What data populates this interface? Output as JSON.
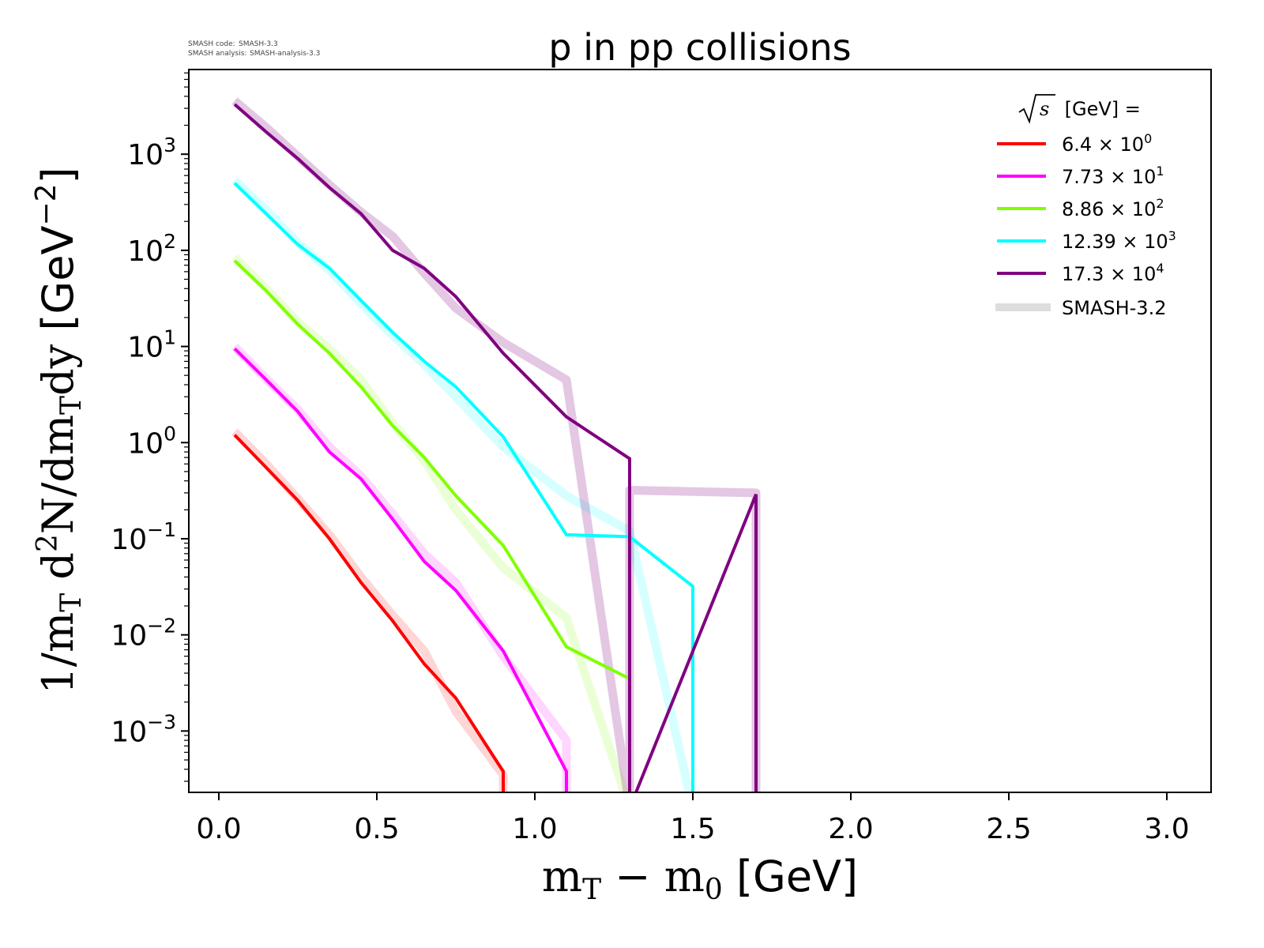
{
  "meta": {
    "code_label": "SMASH code:",
    "code_value": "SMASH-3.3",
    "analysis_label": "SMASH analysis:",
    "analysis_value": "SMASH-analysis-3.3"
  },
  "chart_data": {
    "type": "line",
    "title": "p in pp collisions",
    "xlabel": "m_T − m_0 [GeV]",
    "ylabel": "1/m_T d^2N/dm_Tdy [GeV^-2]",
    "xlabel_parts": {
      "m1": "m",
      "sub1": "T",
      "minus": " − ",
      "m2": "m",
      "sub2": "0",
      "unit": " [GeV]"
    },
    "ylabel_parts": {
      "p1": "1/m",
      "s1": "T",
      "p2": " d",
      "s2": "2",
      "p3": "N/dm",
      "s3": "T",
      "p4": "dy",
      "unit": " [GeV",
      "exp": "−2",
      "close": "]"
    },
    "xscale": "linear",
    "yscale": "log",
    "xlim": [
      -0.095,
      3.14
    ],
    "ylim": [
      0.00023,
      7600
    ],
    "x_ticks": [
      {
        "value": 0.0,
        "label": "0.0"
      },
      {
        "value": 0.5,
        "label": "0.5"
      },
      {
        "value": 1.0,
        "label": "1.0"
      },
      {
        "value": 1.5,
        "label": "1.5"
      },
      {
        "value": 2.0,
        "label": "2.0"
      },
      {
        "value": 2.5,
        "label": "2.5"
      },
      {
        "value": 3.0,
        "label": "3.0"
      }
    ],
    "y_ticks": [
      {
        "exp": 3,
        "base": "10",
        "sup": "3"
      },
      {
        "exp": 2,
        "base": "10",
        "sup": "2"
      },
      {
        "exp": 1,
        "base": "10",
        "sup": "1"
      },
      {
        "exp": 0,
        "base": "10",
        "sup": "0"
      },
      {
        "exp": -1,
        "base": "10",
        "sup": "−1"
      },
      {
        "exp": -2,
        "base": "10",
        "sup": "−2"
      },
      {
        "exp": -3,
        "base": "10",
        "sup": "−3"
      }
    ],
    "grid": false,
    "legend": {
      "placement": "top-right",
      "title_sqrt": "s",
      "title_rest": " [GeV] =",
      "entries": [
        {
          "mantissa": "6.4",
          "times": " × 10",
          "exp": "0"
        },
        {
          "mantissa": "7.73",
          "times": " × 10",
          "exp": "1"
        },
        {
          "mantissa": "8.86",
          "times": " × 10",
          "exp": "2"
        },
        {
          "mantissa": "12.39",
          "times": " × 10",
          "exp": "3"
        },
        {
          "mantissa": "17.3",
          "times": " × 10",
          "exp": "4"
        }
      ],
      "reference_label": "SMASH-3.2"
    },
    "reference_color": "#dddddd",
    "series": [
      {
        "name": "6.4 × 10^0",
        "color": "#ff0000",
        "x": [
          0.05,
          0.15,
          0.25,
          0.35,
          0.45,
          0.55,
          0.65,
          0.75,
          0.9,
          0.9
        ],
        "y": [
          1.2,
          0.55,
          0.25,
          0.1,
          0.035,
          0.014,
          0.005,
          0.0022,
          0.00038,
          0
        ],
        "reference_y": [
          1.3,
          0.6,
          0.26,
          0.11,
          0.04,
          0.016,
          0.0068,
          0.0016,
          0.00035,
          0
        ]
      },
      {
        "name": "7.73 × 10^1",
        "color": "#ff00ff",
        "x": [
          0.05,
          0.15,
          0.25,
          0.35,
          0.45,
          0.55,
          0.65,
          0.75,
          0.9,
          1.1,
          1.1
        ],
        "y": [
          9.5,
          4.5,
          2.1,
          0.8,
          0.42,
          0.16,
          0.058,
          0.029,
          0.0068,
          0.00038,
          0
        ],
        "reference_y": [
          10,
          4.6,
          2.2,
          0.9,
          0.45,
          0.18,
          0.07,
          0.035,
          0.006,
          0.0008,
          0
        ]
      },
      {
        "name": "8.86 × 10^2",
        "color": "#80ff00",
        "x": [
          0.05,
          0.15,
          0.25,
          0.35,
          0.45,
          0.55,
          0.65,
          0.75,
          0.9,
          1.1,
          1.3,
          1.3
        ],
        "y": [
          78,
          38,
          17,
          8.5,
          3.8,
          1.5,
          0.7,
          0.28,
          0.085,
          0.0075,
          0.0035,
          0
        ],
        "reference_y": [
          85,
          40,
          18,
          9.5,
          4.5,
          1.6,
          0.65,
          0.2,
          0.05,
          0.015,
          0,
          0
        ]
      },
      {
        "name": "12.39 × 10^3",
        "color": "#00ffff",
        "x": [
          0.05,
          0.15,
          0.25,
          0.35,
          0.45,
          0.55,
          0.65,
          0.75,
          0.9,
          1.1,
          1.3,
          1.5,
          1.5
        ],
        "y": [
          500,
          240,
          115,
          65,
          30,
          14,
          7,
          3.8,
          1.15,
          0.11,
          0.105,
          0.032,
          0
        ],
        "reference_y": [
          540,
          260,
          120,
          62,
          28,
          13,
          6.5,
          3.0,
          0.9,
          0.28,
          0.12,
          0,
          0
        ]
      },
      {
        "name": "17.3 × 10^4",
        "color": "#800080",
        "x": [
          0.05,
          0.15,
          0.25,
          0.35,
          0.45,
          0.55,
          0.65,
          0.75,
          0.9,
          1.1,
          1.3,
          1.3,
          1.7,
          1.7
        ],
        "y": [
          3300,
          1700,
          900,
          450,
          240,
          100,
          65,
          33,
          8.5,
          1.85,
          0.68,
          0,
          0.29,
          0
        ],
        "reference_y": [
          3600,
          1900,
          950,
          480,
          250,
          140,
          58,
          25,
          11,
          4.5,
          0,
          0.32,
          0.3,
          0
        ]
      }
    ]
  }
}
